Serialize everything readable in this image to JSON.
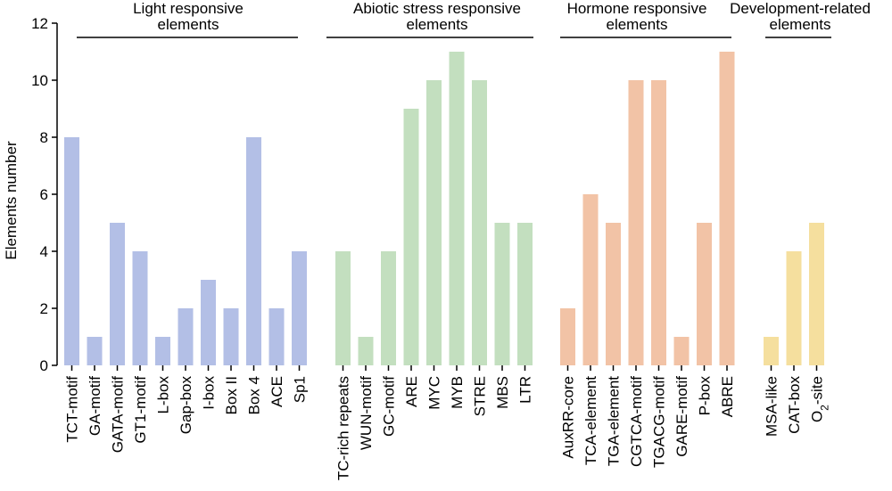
{
  "chart_data": {
    "type": "bar",
    "ylabel": "Elements number",
    "ylim": [
      0,
      12
    ],
    "yticks": [
      0,
      2,
      4,
      6,
      8,
      10,
      12
    ],
    "grid": false,
    "legend": "none",
    "groups": [
      {
        "name": [
          "Light responsive",
          "elements"
        ],
        "color": "#b3bfe6",
        "categories": [
          "TCT-motif",
          "GA-motif",
          "GATA-motif",
          "GT1-motif",
          "L-box",
          "Gap-box",
          "I-box",
          "Box II",
          "Box 4",
          "ACE",
          "Sp1"
        ],
        "values": [
          8,
          1,
          5,
          4,
          1,
          2,
          3,
          2,
          8,
          2,
          4
        ]
      },
      {
        "name": [
          "Abiotic stress responsive",
          "elements"
        ],
        "color": "#c3dfbf",
        "categories": [
          "TC-rich repeats",
          "WUN-motif",
          "GC-motif",
          "ARE",
          "MYC",
          "MYB",
          "STRE",
          "MBS",
          "LTR"
        ],
        "values": [
          4,
          1,
          4,
          9,
          10,
          11,
          10,
          5,
          5
        ]
      },
      {
        "name": [
          "Hormone responsive",
          "elements"
        ],
        "color": "#f2c3a6",
        "categories": [
          "AuxRR-core",
          "TCA-element",
          "TGA-element",
          "CGTCA-motif",
          "TGACG-motif",
          "GARE-motif",
          "P-box",
          "ABRE"
        ],
        "values": [
          2,
          6,
          5,
          10,
          10,
          1,
          5,
          11
        ]
      },
      {
        "name": [
          "Development-related",
          "elements"
        ],
        "color": "#f5df9e",
        "categories": [
          "MSA-like",
          "CAT-box",
          "O2-site"
        ],
        "values": [
          1,
          4,
          5
        ]
      }
    ]
  }
}
